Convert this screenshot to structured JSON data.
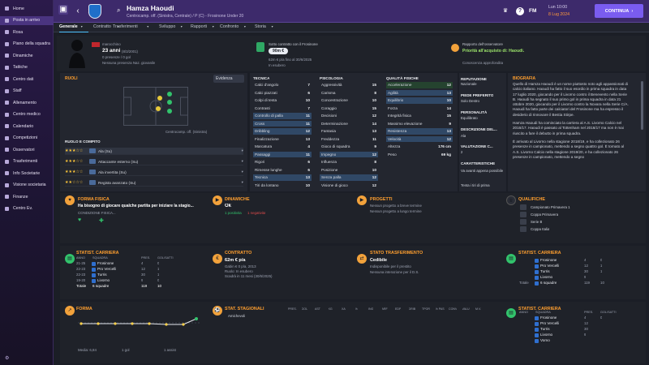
{
  "sidebar": {
    "items": [
      {
        "label": "Home",
        "active": false
      },
      {
        "label": "Posta in arrivo",
        "active": true
      },
      {
        "label": "Rosa",
        "active": false
      },
      {
        "label": "Piano della squadra",
        "active": false
      },
      {
        "label": "Dinamiche",
        "active": false
      },
      {
        "label": "Tattiche",
        "active": false
      },
      {
        "label": "Centro dati",
        "active": false
      },
      {
        "label": "Staff",
        "active": false
      },
      {
        "label": "Allenamento",
        "active": false
      },
      {
        "label": "Centro medico",
        "active": false
      },
      {
        "label": "Calendario",
        "active": false
      },
      {
        "label": "Competizioni",
        "active": false
      },
      {
        "label": "Osservatori",
        "active": false
      },
      {
        "label": "Trasferimenti",
        "active": false
      },
      {
        "label": "Info Societarie",
        "active": false
      },
      {
        "label": "Visione societaria",
        "active": false
      },
      {
        "label": "Finanze",
        "active": false
      },
      {
        "label": "Centro Ev.",
        "active": false
      }
    ],
    "bottom": "⚙"
  },
  "header": {
    "player_name": "Hamza Haoudi",
    "subtitle": "Centrocamp. off. (Sinistra, Centrale) / P (C) - Frosinone Under 20",
    "fm": "FM",
    "date_day": "Lun 10:00",
    "date_full": "8 Lug 2024",
    "continue": "CONTINUA"
  },
  "tabs": [
    {
      "label": "Generale",
      "active": true
    },
    {
      "label": "Contratto"
    },
    {
      "label": "Trasferimenti"
    },
    {
      "label": "Sviluppo"
    },
    {
      "label": "Rapporti"
    },
    {
      "label": "Confronto"
    },
    {
      "label": "Storia"
    }
  ],
  "profile": {
    "nationality": "marocchino",
    "age": "23 anni",
    "dob": "(8/3/2001)",
    "apps": "0 presenze / 0 gol",
    "intl": "Nessuna presenza Naz. giovanile"
  },
  "contract": {
    "title": "Sotto contratto con il Frosinone",
    "value": "90m €",
    "wage": "62m € p/a fino al 30/6/2025",
    "loan": "In esubero"
  },
  "scout": {
    "title": "Rapporto dell'osservatore",
    "priority": "Priorità all'acquisto di: Haoudi.",
    "note": "Conoscenza approfondita"
  },
  "roles": {
    "title": "RUOLI",
    "dropdown": "Evidenza",
    "pitch_label": "Centrocamp. off. (Sinistra)",
    "sub_title": "RUOLO E COMPITO",
    "rows": [
      {
        "stars": "★★★☆☆",
        "role": "Ala (Su)"
      },
      {
        "stars": "★★★☆☆",
        "role": "Attaccante esterno (Su)"
      },
      {
        "stars": "★★★☆☆",
        "role": "Ala invertita (Su)"
      },
      {
        "stars": "★★☆☆☆",
        "role": "Regista avanzato (Su)"
      }
    ]
  },
  "attributes": {
    "technical": {
      "title": "TECNICA",
      "rows": [
        [
          "Calci d'angolo",
          "7",
          ""
        ],
        [
          "Calci piazzati",
          "6",
          ""
        ],
        [
          "Colpi di testa",
          "10",
          ""
        ],
        [
          "Contrasti",
          "7",
          ""
        ],
        [
          "Controllo di palla",
          "11",
          "hl"
        ],
        [
          "Cross",
          "11",
          "hl"
        ],
        [
          "Dribbling",
          "12",
          "hl"
        ],
        [
          "Finalizzazione",
          "13",
          ""
        ],
        [
          "Marcatura",
          "4",
          ""
        ],
        [
          "Passaggi",
          "11",
          "hl"
        ],
        [
          "Rigori",
          "6",
          ""
        ],
        [
          "Rimesse lunghe",
          "6",
          ""
        ],
        [
          "Tecnica",
          "13",
          "hl"
        ],
        [
          "Tiri da lontano",
          "10",
          ""
        ]
      ]
    },
    "mental": {
      "title": "PSICOLOGIA",
      "rows": [
        [
          "Aggressività",
          "15",
          ""
        ],
        [
          "Carisma",
          "8",
          ""
        ],
        [
          "Concentrazione",
          "10",
          ""
        ],
        [
          "Coraggio",
          "15",
          ""
        ],
        [
          "Decisioni",
          "12",
          ""
        ],
        [
          "Determinazione",
          "14",
          ""
        ],
        [
          "Fantasia",
          "13",
          ""
        ],
        [
          "Freddezza",
          "11",
          ""
        ],
        [
          "Gioco di squadra",
          "9",
          ""
        ],
        [
          "Impegno",
          "12",
          "hl"
        ],
        [
          "Influenza",
          "8",
          ""
        ],
        [
          "Posizione",
          "10",
          ""
        ],
        [
          "Senza palla",
          "12",
          "hl"
        ],
        [
          "Visione di gioco",
          "12",
          ""
        ]
      ]
    },
    "physical": {
      "title": "QUALITÀ FISICHE",
      "rows": [
        [
          "Accelerazione",
          "12",
          "gr"
        ],
        [
          "Agilità",
          "13",
          "hl"
        ],
        [
          "Equilibrio",
          "10",
          "hl"
        ],
        [
          "Forza",
          "14",
          ""
        ],
        [
          "Integrità fisica",
          "15",
          ""
        ],
        [
          "Massimo elevazione",
          "9",
          ""
        ],
        [
          "Resistenza",
          "13",
          "hl"
        ],
        [
          "Velocità",
          "12",
          "hl"
        ],
        [
          "Altezza",
          "176 cm",
          ""
        ],
        [
          "Peso",
          "69 kg",
          ""
        ]
      ]
    }
  },
  "reputation": {
    "title": "REPUTAZIONE",
    "value": "Nazionale",
    "foot_title": "PIEDE PREFERITO",
    "foot": "Solo Destro",
    "pers_title": "PERSONALITÀ",
    "pers": "Equilibrato",
    "desc_title": "DESCRIZIONE DEL...",
    "desc": "Ala",
    "val_title": "VALUTAZIONE C...",
    "val": "2",
    "char_title": "CARATTERISTICHE",
    "char": "Va avanti appena possibile",
    "char2": "Tenta i tiri di prima"
  },
  "bio": {
    "title": "BIOGRAFIA",
    "p1": "Quello di Hamza Haoudi è un nome piuttosto noto agli appassionati di calcio italiano. Haoudi ha fatto il suo esordio in prima squadra in data 17 luglio 2020, giocando per il Livorno contro il Benevento nella Serie B. Haoudi ha segnato il suo primo gol in prima squadra in data 21 ottobre 2020, giocando per il Livorno contro la Novara nella Serie C/A. Haoudi ha fatto parte dei calciatori del Frosinone ma ha espresso il desiderio di rinnovare il Bestia Stirpe.",
    "p2": "Hamza Haoudi ha cominciato la carriera al A.S. Livorno Calcio nel 2016/17. Haoudi è passato al Tottenham nel 2016/17 ma non è mai riuscito a fare il debutto in prima squadra.",
    "p3": "È arrivato al Livorno nella stagione 2018/19, e ha collezionato 26 presenze in campionato, mettendo a segno quattro gol. È tornato al A.S. Livorno Calcio nella stagione 2019/20, e ha collezionato 26 presenze in campionato, mettendo a segno"
  },
  "fitness": {
    "title": "FORMA FISICA",
    "text": "Ha bisogno di giocare qualche partita per iniziare la stagio...",
    "sub": "CONDIZIONE FISICA..."
  },
  "dynamics": {
    "title": "DINAMICHE",
    "value": "Ok",
    "sub1": "1 positivita",
    "sub2": "1 negativita"
  },
  "projects": {
    "title": "PROGETTI",
    "r1": "Nessun progetto a breve termine",
    "r2": "Nessun progetto a lungo termine"
  },
  "quals": {
    "title": "QUALIFICHE",
    "items": [
      "Campionato Primavera 1",
      "Coppa Primavera",
      "Serie B",
      "Coppa Italia"
    ]
  },
  "career": {
    "title": "STATIST. CARRIERA",
    "cols": [
      "ANNO",
      "SQUADRA",
      "PRES.",
      "GOL/SATTI"
    ],
    "rows": [
      [
        "21-25",
        "Frosinone",
        "4",
        "0"
      ],
      [
        "22-23",
        "Pro Vercelli",
        "12",
        "1"
      ],
      [
        "22-23",
        "Turris",
        "30",
        "1"
      ],
      [
        "19-20",
        "Livorno",
        "9",
        "0"
      ]
    ],
    "total_label": "Totale",
    "total_teams": "6 squadre",
    "total_apps": "119",
    "total_goals": "10"
  },
  "contract_card": {
    "title": "CONTRATTO",
    "value": "62m € p/a",
    "l1": "Gabin € 0 p/a, 2013",
    "l2": "Ruolo: In esubero",
    "l3": "Scadrà in 11 mesi (30/6/2025)"
  },
  "transfer": {
    "title": "STATO TRASFERIMENTO",
    "value": "Cedibile",
    "l1": "Indisponibile per il prestito",
    "l2": "Nessuna interazione per il D.S."
  },
  "career2": {
    "title": "STATIST. CARRIERA",
    "rows": [
      [
        "",
        "Frosinone",
        "4",
        "0"
      ],
      [
        "",
        "Pro Vercelli",
        "12",
        "1"
      ],
      [
        "",
        "Turris",
        "30",
        "1"
      ],
      [
        "",
        "Livorno",
        "9",
        ""
      ],
      [
        "Totale",
        "6 squadre",
        "119",
        "10"
      ]
    ]
  },
  "form": {
    "title": "FORMA",
    "avg": "Media: 6,84",
    "gol": "1 gol",
    "assist": "1 assist"
  },
  "season": {
    "title": "STAT. STAGIONALI",
    "cols": [
      "PRES.",
      "GOL",
      "AST",
      "XG",
      "XA",
      "%",
      "ING",
      "ARF",
      "EDP",
      "DRIB",
      "TPOR",
      "% PAS",
      "CONV",
      "VALU",
      "M.V."
    ],
    "row": "Amichevoli"
  },
  "career3": {
    "title": "STATIST. CARRIERA",
    "cols": [
      "ANNO",
      "SQUADRA",
      "PRES.",
      "GOL/SATTI"
    ],
    "rows": [
      [
        "",
        "Frosinone",
        "4",
        "0"
      ],
      [
        "",
        "Pro Vercelli",
        "12",
        ""
      ],
      [
        "",
        "Turris",
        "30",
        ""
      ],
      [
        "",
        "Livorno",
        "9",
        ""
      ],
      [
        "",
        "Vomo",
        "",
        ""
      ]
    ]
  },
  "colors": {
    "accent": "#7a5cf0",
    "orange": "#ff9f2f",
    "green": "#32c36c",
    "sidebar": "#231844"
  }
}
